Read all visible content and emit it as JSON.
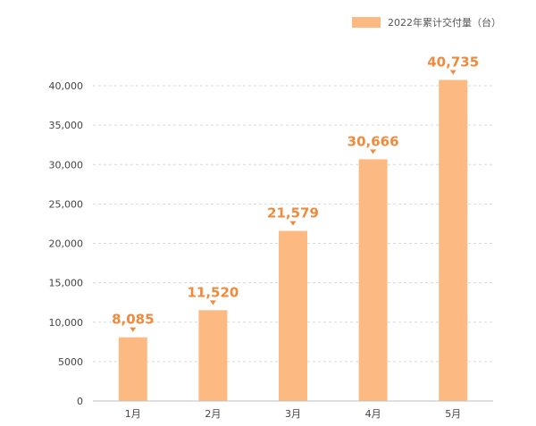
{
  "chart_data": {
    "type": "bar",
    "categories": [
      "1月",
      "2月",
      "3月",
      "4月",
      "5月"
    ],
    "series": [
      {
        "name": "2022年累计交付量（台）",
        "values": [
          8085,
          11520,
          21579,
          30666,
          40735
        ]
      }
    ],
    "data_labels": [
      "8,085",
      "11,520",
      "21,579",
      "30,666",
      "40,735"
    ],
    "y_ticks": [
      0,
      5000,
      10000,
      15000,
      20000,
      25000,
      30000,
      35000,
      40000
    ],
    "y_tick_labels": [
      "0",
      "5000",
      "10,000",
      "15,000",
      "20,000",
      "25,000",
      "30,000",
      "35,000",
      "40,000"
    ],
    "ylim": [
      0,
      40000
    ],
    "grid": true,
    "legend_position": "top-right",
    "colors": {
      "bar": "#fdb982",
      "label": "#f08a3c",
      "grid": "#d9d9d9",
      "axis": "#bfbfbf"
    }
  }
}
